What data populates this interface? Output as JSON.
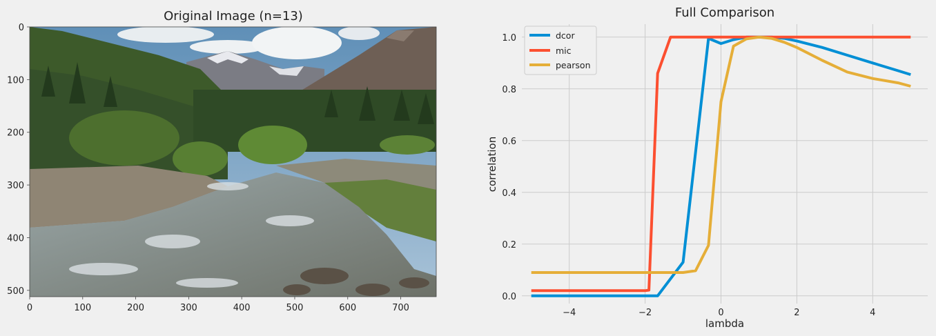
{
  "chart_data": [
    {
      "type": "image",
      "title": "Original Image (n=13)",
      "xlim": [
        0,
        767
      ],
      "ylim": [
        512,
        0
      ],
      "xticks": [
        0,
        100,
        200,
        300,
        400,
        500,
        600,
        700
      ],
      "yticks": [
        0,
        100,
        200,
        300,
        400,
        500
      ],
      "grid": false
    },
    {
      "type": "line",
      "title": "Full Comparison",
      "xlabel": "lambda",
      "ylabel": "correlation",
      "xlim": [
        -5.25,
        5.45
      ],
      "ylim": [
        -0.03,
        1.05
      ],
      "xticks": [
        -4,
        -2,
        0,
        2,
        4
      ],
      "yticks": [
        0.0,
        0.2,
        0.4,
        0.6,
        0.8,
        1.0
      ],
      "grid": true,
      "legend_position": "top-left",
      "series": [
        {
          "name": "dcor",
          "color": "#008fd5",
          "x": [
            -5,
            -1.67,
            -1.0,
            -0.33,
            0.0,
            0.33,
            0.67,
            1.0,
            1.33,
            1.67,
            2.0,
            2.67,
            3.33,
            4.0,
            4.67,
            5.0
          ],
          "y": [
            0.0,
            0.0,
            0.13,
            0.995,
            0.975,
            0.99,
            1.0,
            1.0,
            1.0,
            0.995,
            0.985,
            0.96,
            0.93,
            0.9,
            0.87,
            0.855
          ]
        },
        {
          "name": "mic",
          "color": "#fc4f30",
          "x": [
            -5,
            -2.0,
            -1.9,
            -1.67,
            -1.33,
            0.0,
            5.0
          ],
          "y": [
            0.02,
            0.02,
            0.022,
            0.86,
            1.0,
            1.0,
            1.0
          ]
        },
        {
          "name": "pearson",
          "color": "#e5ae38",
          "x": [
            -5,
            -1.0,
            -0.67,
            -0.33,
            0.0,
            0.33,
            0.67,
            1.0,
            1.33,
            1.67,
            2.0,
            2.67,
            3.33,
            4.0,
            4.67,
            5.0
          ],
          "y": [
            0.09,
            0.09,
            0.097,
            0.195,
            0.75,
            0.965,
            0.993,
            1.0,
            0.995,
            0.98,
            0.96,
            0.91,
            0.865,
            0.84,
            0.823,
            0.81
          ]
        }
      ]
    }
  ]
}
